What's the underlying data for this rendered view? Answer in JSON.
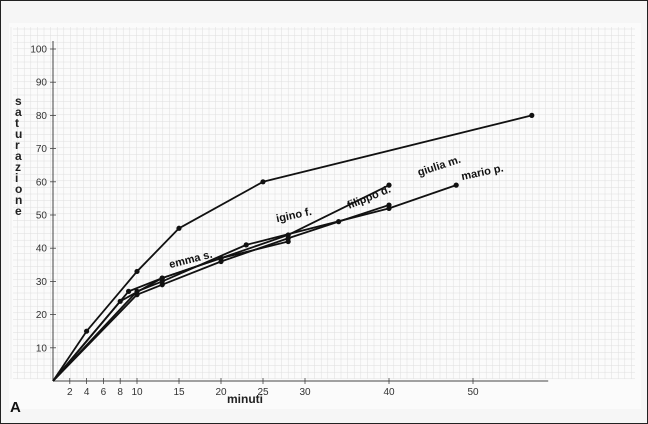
{
  "panel_label": "A",
  "chart_data": {
    "type": "line",
    "xlabel": "minuti",
    "ylabel": "saturazione",
    "xlim": [
      0,
      58
    ],
    "ylim": [
      0,
      100
    ],
    "x_ticks": [
      2,
      4,
      6,
      8,
      10,
      15,
      20,
      25,
      30,
      40,
      50
    ],
    "y_ticks": [
      10,
      20,
      30,
      40,
      50,
      60,
      70,
      80,
      90,
      100
    ],
    "grid": true,
    "series": [
      {
        "name": "igino f.",
        "x": [
          0,
          4,
          10,
          15,
          25,
          57
        ],
        "y": [
          0,
          15,
          33,
          46,
          60,
          80
        ]
      },
      {
        "name": "giulia m.",
        "x": [
          0,
          8,
          13,
          20,
          28,
          40
        ],
        "y": [
          0,
          24,
          31,
          37,
          44,
          59
        ]
      },
      {
        "name": "filippo d.",
        "x": [
          0,
          10,
          13,
          20,
          28,
          34,
          40
        ],
        "y": [
          0,
          26,
          29,
          36,
          43,
          48,
          53
        ]
      },
      {
        "name": "mario p.",
        "x": [
          0,
          10,
          13,
          23,
          40,
          48
        ],
        "y": [
          0,
          27,
          30,
          41,
          52,
          59
        ]
      },
      {
        "name": "emma s.",
        "x": [
          0,
          9,
          13,
          20,
          28
        ],
        "y": [
          0,
          27,
          31,
          37,
          42
        ]
      }
    ]
  }
}
